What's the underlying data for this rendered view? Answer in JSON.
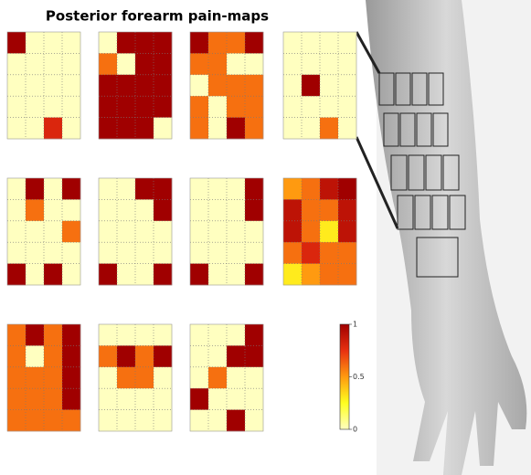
{
  "chart_data": {
    "type": "heatmap",
    "title": "Posterior forearm pain-maps",
    "colormap": [
      "#ffffc0",
      "#ffff20",
      "#ff9a10",
      "#e83010",
      "#a00000"
    ],
    "colorbar": {
      "lim": [
        0,
        1
      ],
      "ticks": [
        0,
        0.5,
        1
      ]
    },
    "maps": [
      {
        "z": [
          [
            1,
            0,
            0,
            0
          ],
          [
            0,
            0,
            0,
            0
          ],
          [
            0,
            0,
            0,
            0
          ],
          [
            0,
            0,
            0,
            0
          ],
          [
            0,
            0,
            0.8,
            0
          ]
        ]
      },
      {
        "z": [
          [
            0,
            1,
            1,
            1
          ],
          [
            0.6,
            0,
            1,
            1
          ],
          [
            1,
            1,
            1,
            1
          ],
          [
            1,
            1,
            1,
            1
          ],
          [
            1,
            1,
            1,
            0
          ]
        ]
      },
      {
        "z": [
          [
            1,
            0.6,
            0.6,
            1
          ],
          [
            0.6,
            0.6,
            0,
            0
          ],
          [
            0,
            0.6,
            0.6,
            0.6
          ],
          [
            0.6,
            0,
            0.6,
            0.6
          ],
          [
            0.6,
            0,
            1,
            0.6
          ]
        ]
      },
      {
        "z": [
          [
            0,
            0,
            0,
            0
          ],
          [
            0,
            0,
            0,
            0
          ],
          [
            0,
            1,
            0,
            0
          ],
          [
            0,
            0,
            0,
            0
          ],
          [
            0,
            0,
            0.6,
            0
          ]
        ]
      },
      {
        "z": [
          [
            0,
            1,
            0,
            1
          ],
          [
            0,
            0.6,
            0,
            0
          ],
          [
            0,
            0,
            0,
            0.6
          ],
          [
            0,
            0,
            0,
            0
          ],
          [
            1,
            0,
            1,
            0
          ]
        ]
      },
      {
        "z": [
          [
            0,
            0,
            1,
            1
          ],
          [
            0,
            0,
            0,
            1
          ],
          [
            0,
            0,
            0,
            0
          ],
          [
            0,
            0,
            0,
            0
          ],
          [
            1,
            0,
            0,
            1
          ]
        ]
      },
      {
        "z": [
          [
            0,
            0,
            0,
            1
          ],
          [
            0,
            0,
            0,
            1
          ],
          [
            0,
            0,
            0,
            0
          ],
          [
            0,
            0,
            0,
            0
          ],
          [
            1,
            0,
            0,
            1
          ]
        ]
      },
      {
        "z": [
          [
            0.5,
            0.6,
            0.9,
            1
          ],
          [
            0.9,
            0.6,
            0.6,
            0.9
          ],
          [
            0.9,
            0.6,
            0.3,
            0.9
          ],
          [
            0.6,
            0.8,
            0.6,
            0.6
          ],
          [
            0.3,
            0.5,
            0.6,
            0.6
          ]
        ]
      },
      {
        "z": [
          [
            0.6,
            1,
            0.6,
            1
          ],
          [
            0.6,
            0,
            0.6,
            1
          ],
          [
            0.6,
            0.6,
            0.6,
            1
          ],
          [
            0.6,
            0.6,
            0.6,
            1
          ],
          [
            0.6,
            0.6,
            0.6,
            0.6
          ]
        ]
      },
      {
        "z": [
          [
            0,
            0,
            0,
            0
          ],
          [
            0.6,
            1,
            0.6,
            1
          ],
          [
            0,
            0.6,
            0.6,
            0
          ],
          [
            0,
            0,
            0,
            0
          ],
          [
            0,
            0,
            0,
            0
          ]
        ]
      },
      {
        "z": [
          [
            0,
            0,
            0,
            1
          ],
          [
            0,
            0,
            1,
            1
          ],
          [
            0,
            0.6,
            0,
            0
          ],
          [
            1,
            0,
            0,
            0
          ],
          [
            0,
            0,
            1,
            0
          ]
        ]
      }
    ]
  }
}
